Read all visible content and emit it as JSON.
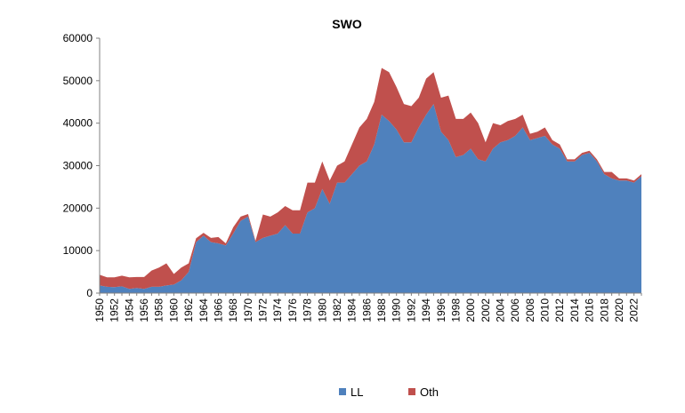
{
  "chart_data": {
    "type": "area",
    "stacked": true,
    "title": "SWO",
    "xlabel": "",
    "ylabel": "",
    "ylim": [
      0,
      60000
    ],
    "yticks": [
      "0",
      "10000",
      "20000",
      "30000",
      "40000",
      "50000",
      "60000"
    ],
    "x": [
      1950,
      1951,
      1952,
      1953,
      1954,
      1955,
      1956,
      1957,
      1958,
      1959,
      1960,
      1961,
      1962,
      1963,
      1964,
      1965,
      1966,
      1967,
      1968,
      1969,
      1970,
      1971,
      1972,
      1973,
      1974,
      1975,
      1976,
      1977,
      1978,
      1979,
      1980,
      1981,
      1982,
      1983,
      1984,
      1985,
      1986,
      1987,
      1988,
      1989,
      1990,
      1991,
      1992,
      1993,
      1994,
      1995,
      1996,
      1997,
      1998,
      1999,
      2000,
      2001,
      2002,
      2003,
      2004,
      2005,
      2006,
      2007,
      2008,
      2009,
      2010,
      2011,
      2012,
      2013,
      2014,
      2015,
      2016,
      2017,
      2018,
      2019,
      2020,
      2021,
      2022,
      2023
    ],
    "xtick_labels": [
      "1950",
      "1952",
      "1954",
      "1956",
      "1958",
      "1960",
      "1962",
      "1964",
      "1966",
      "1968",
      "1970",
      "1972",
      "1974",
      "1976",
      "1978",
      "1980",
      "1982",
      "1984",
      "1986",
      "1988",
      "1990",
      "1992",
      "1994",
      "1996",
      "1998",
      "2000",
      "2002",
      "2004",
      "2006",
      "2008",
      "2010",
      "2012",
      "2014",
      "2016",
      "2018",
      "2020",
      "2022"
    ],
    "series": [
      {
        "name": "LL",
        "color": "#4f81bd",
        "values": [
          1800,
          1500,
          1400,
          1600,
          1000,
          1200,
          1000,
          1500,
          1500,
          1800,
          2000,
          3000,
          5000,
          12000,
          13500,
          12000,
          11700,
          11200,
          14000,
          17000,
          18000,
          12000,
          13000,
          13500,
          14000,
          16000,
          14000,
          14000,
          19000,
          20000,
          24500,
          21000,
          26000,
          26000,
          28000,
          30000,
          31000,
          35000,
          42000,
          40500,
          38500,
          35500,
          35500,
          39000,
          42000,
          44500,
          38000,
          36000,
          32000,
          32500,
          34000,
          31500,
          31000,
          34000,
          35500,
          36000,
          37000,
          39000,
          36000,
          36500,
          37000,
          35000,
          34000,
          31000,
          31000,
          32500,
          33000,
          31000,
          28000,
          27000,
          26500,
          26500,
          26000,
          27500
        ]
      },
      {
        "name": "Oth",
        "color": "#c0504d",
        "values": [
          2500,
          2200,
          2300,
          2500,
          2700,
          2600,
          2800,
          3800,
          4500,
          5200,
          2500,
          3000,
          2000,
          900,
          700,
          1000,
          1500,
          500,
          1500,
          1000,
          600,
          300,
          5500,
          4500,
          5000,
          4500,
          5500,
          5500,
          7000,
          6000,
          6500,
          5500,
          4000,
          5000,
          7000,
          9000,
          10000,
          10000,
          11000,
          11500,
          10000,
          9000,
          8500,
          7000,
          8500,
          7500,
          8000,
          10500,
          9000,
          8500,
          8500,
          8500,
          4500,
          6000,
          4000,
          4500,
          4000,
          3000,
          1500,
          1500,
          2000,
          1000,
          1000,
          500,
          500,
          500,
          500,
          500,
          500,
          1500,
          500,
          500,
          500,
          500
        ]
      }
    ],
    "legend": {
      "position": "bottom",
      "entries": [
        "LL",
        "Oth"
      ]
    },
    "grid": false
  }
}
